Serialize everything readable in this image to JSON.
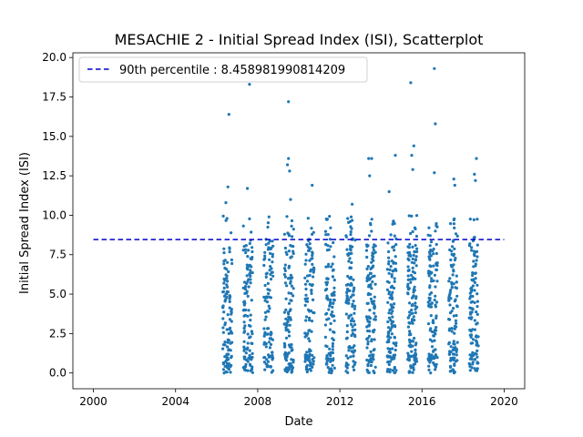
{
  "chart_data": {
    "type": "scatter",
    "title": "MESACHIE 2 - Initial Spread Index (ISI), Scatterplot",
    "xlabel": "Date",
    "ylabel": "Initial Spread Index (ISI)",
    "xlim": [
      1999.0,
      2021.0
    ],
    "ylim": [
      -1.0,
      20.3
    ],
    "xticks": [
      2000,
      2004,
      2008,
      2012,
      2016,
      2020
    ],
    "xtick_labels": [
      "2000",
      "2004",
      "2008",
      "2012",
      "2016",
      "2020"
    ],
    "yticks": [
      0.0,
      2.5,
      5.0,
      7.5,
      10.0,
      12.5,
      15.0,
      17.5,
      20.0
    ],
    "ytick_labels": [
      "0.0",
      "2.5",
      "5.0",
      "7.5",
      "10.0",
      "12.5",
      "15.0",
      "17.5",
      "20.0"
    ],
    "grid": false,
    "legend_position": "upper-left",
    "percentile": {
      "label": "90th percentile : 8.458981990814209",
      "value": 8.458981990814209,
      "x_start": 2000.0,
      "x_end": 2020.0,
      "color": "#0000cc"
    },
    "point_color": "#1f77b4",
    "seasons": [
      {
        "year": 2006,
        "x_start": 2006.3,
        "x_end": 2006.75,
        "count": 110,
        "outliers": [
          [
            2006.6,
            16.4
          ],
          [
            2006.55,
            11.8
          ],
          [
            2006.45,
            10.8
          ]
        ]
      },
      {
        "year": 2007,
        "x_start": 2007.3,
        "x_end": 2007.75,
        "count": 110,
        "outliers": [
          [
            2007.6,
            18.3
          ],
          [
            2007.5,
            11.7
          ]
        ]
      },
      {
        "year": 2008,
        "x_start": 2008.3,
        "x_end": 2008.75,
        "count": 100,
        "outliers": [
          [
            2008.55,
            9.9
          ]
        ]
      },
      {
        "year": 2009,
        "x_start": 2009.3,
        "x_end": 2009.75,
        "count": 115,
        "outliers": [
          [
            2009.5,
            17.2
          ],
          [
            2009.5,
            13.6
          ],
          [
            2009.45,
            13.2
          ],
          [
            2009.55,
            12.8
          ],
          [
            2009.6,
            11.0
          ]
        ]
      },
      {
        "year": 2010,
        "x_start": 2010.3,
        "x_end": 2010.75,
        "count": 110,
        "outliers": [
          [
            2010.65,
            11.9
          ]
        ]
      },
      {
        "year": 2011,
        "x_start": 2011.3,
        "x_end": 2011.75,
        "count": 110,
        "outliers": [
          [
            2011.55,
            9.2
          ]
        ]
      },
      {
        "year": 2012,
        "x_start": 2012.3,
        "x_end": 2012.75,
        "count": 115,
        "outliers": [
          [
            2012.6,
            10.7
          ],
          [
            2012.55,
            9.9
          ],
          [
            2012.5,
            9.6
          ]
        ]
      },
      {
        "year": 2013,
        "x_start": 2013.3,
        "x_end": 2013.75,
        "count": 115,
        "outliers": [
          [
            2013.4,
            13.6
          ],
          [
            2013.55,
            13.6
          ],
          [
            2013.45,
            12.5
          ],
          [
            2013.5,
            9.4
          ]
        ]
      },
      {
        "year": 2014,
        "x_start": 2014.3,
        "x_end": 2014.75,
        "count": 120,
        "outliers": [
          [
            2014.7,
            13.8
          ],
          [
            2014.4,
            11.5
          ],
          [
            2014.6,
            9.6
          ]
        ]
      },
      {
        "year": 2015,
        "x_start": 2015.3,
        "x_end": 2015.75,
        "count": 140,
        "outliers": [
          [
            2015.45,
            18.4
          ],
          [
            2015.6,
            14.4
          ],
          [
            2015.5,
            13.8
          ],
          [
            2015.55,
            12.9
          ]
        ]
      },
      {
        "year": 2016,
        "x_start": 2016.3,
        "x_end": 2016.75,
        "count": 120,
        "outliers": [
          [
            2016.6,
            19.3
          ],
          [
            2016.65,
            15.8
          ],
          [
            2016.6,
            12.7
          ]
        ]
      },
      {
        "year": 2017,
        "x_start": 2017.3,
        "x_end": 2017.75,
        "count": 110,
        "outliers": [
          [
            2017.55,
            12.3
          ],
          [
            2017.6,
            11.9
          ]
        ]
      },
      {
        "year": 2018,
        "x_start": 2018.3,
        "x_end": 2018.75,
        "count": 115,
        "outliers": [
          [
            2018.65,
            13.6
          ],
          [
            2018.55,
            12.6
          ],
          [
            2018.6,
            12.2
          ]
        ]
      }
    ]
  }
}
